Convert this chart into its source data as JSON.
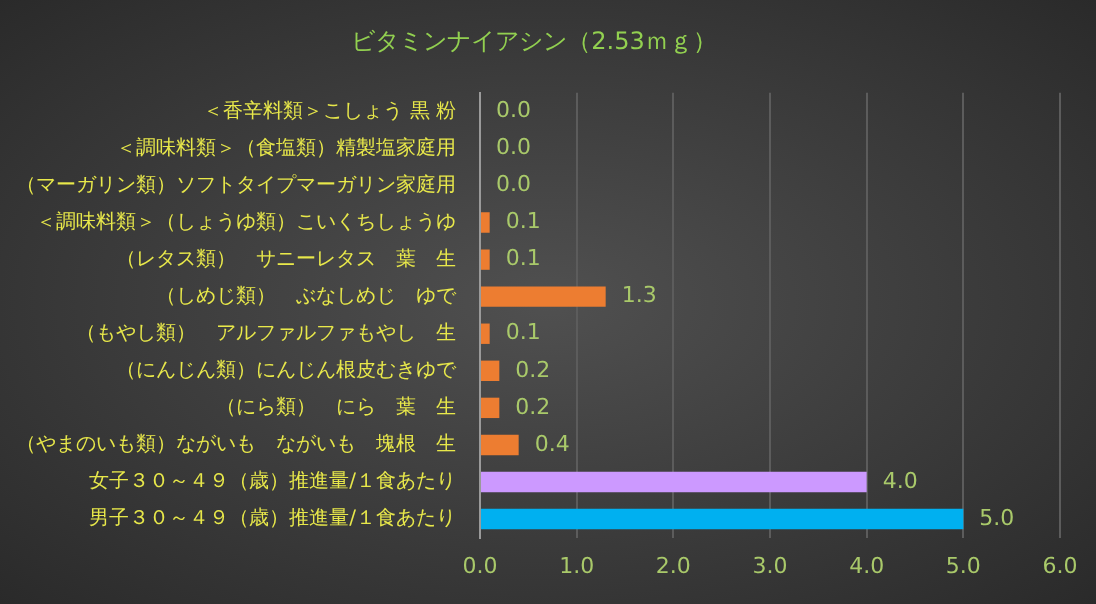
{
  "chart_data": {
    "type": "bar",
    "orientation": "horizontal",
    "title": "ビタミンナイアシン（2.53ｍｇ）",
    "categories": [
      "＜香辛料類＞こしょう 黒 粉",
      "＜調味料類＞（食塩類）精製塩家庭用",
      "（マーガリン類）ソフトタイプマーガリン家庭用",
      "＜調味料類＞（しょうゆ類）こいくちしょうゆ",
      "（レタス類）　サニーレタス　葉　生",
      "（しめじ類）　ぶなしめじ　ゆで",
      "（もやし類）　アルファルファもやし　生",
      "（にんじん類）にんじん根皮むきゆで",
      "（にら類）　にら　葉　生",
      "（やまのいも類）ながいも　ながいも　塊根　生",
      "女子３０～４９（歳）推進量/１食あたり",
      "男子３０～４９（歳）推進量/１食あたり"
    ],
    "values": [
      0.0,
      0.0,
      0.0,
      0.1,
      0.1,
      1.3,
      0.1,
      0.2,
      0.2,
      0.4,
      4.0,
      5.0
    ],
    "value_labels": [
      "0.0",
      "0.0",
      "0.0",
      "0.1",
      "0.1",
      "1.3",
      "0.1",
      "0.2",
      "0.2",
      "0.4",
      "4.0",
      "5.0"
    ],
    "colors": [
      "#ed7d31",
      "#ed7d31",
      "#ed7d31",
      "#ed7d31",
      "#ed7d31",
      "#ed7d31",
      "#ed7d31",
      "#ed7d31",
      "#ed7d31",
      "#ed7d31",
      "#cc99ff",
      "#00b0f0"
    ],
    "xlim": [
      0,
      6
    ],
    "xticks": [
      {
        "value": 0,
        "label": "0.0"
      },
      {
        "value": 1,
        "label": "1.0"
      },
      {
        "value": 2,
        "label": "2.0"
      },
      {
        "value": 3,
        "label": "3.0"
      },
      {
        "value": 4,
        "label": "4.0"
      },
      {
        "value": 5,
        "label": "5.0"
      },
      {
        "value": 6,
        "label": "6.0"
      }
    ],
    "grid": "x",
    "legend": false
  }
}
